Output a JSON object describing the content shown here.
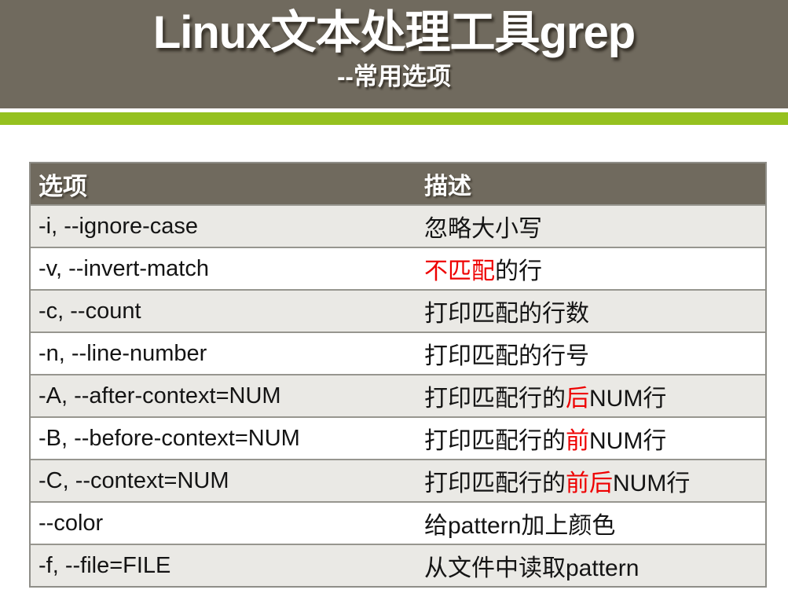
{
  "header": {
    "title": "Linux文本处理工具grep",
    "subtitle": "--常用选项"
  },
  "colors": {
    "band_brown": "#706a5e",
    "accent_green": "#95c11f",
    "row_alt_gray": "#eae9e5",
    "highlight_red": "#ee0000",
    "table_border": "#8f8e88",
    "row_divider": "#97968f"
  },
  "table": {
    "columns": [
      "选项",
      "描述"
    ],
    "rows": [
      {
        "option": "-i, --ignore-case",
        "desc": [
          {
            "text": "忽略大小写",
            "red": false
          }
        ]
      },
      {
        "option": "-v, --invert-match",
        "desc": [
          {
            "text": "不匹配",
            "red": true
          },
          {
            "text": "的行",
            "red": false
          }
        ]
      },
      {
        "option": "-c, --count",
        "desc": [
          {
            "text": "打印匹配的行数",
            "red": false
          }
        ]
      },
      {
        "option": "-n, --line-number",
        "desc": [
          {
            "text": "打印匹配的行号",
            "red": false
          }
        ]
      },
      {
        "option": "-A, --after-context=NUM",
        "desc": [
          {
            "text": "打印匹配行的",
            "red": false
          },
          {
            "text": "后",
            "red": true
          },
          {
            "text": "NUM行",
            "red": false
          }
        ]
      },
      {
        "option": "-B, --before-context=NUM",
        "desc": [
          {
            "text": "打印匹配行的",
            "red": false
          },
          {
            "text": "前",
            "red": true
          },
          {
            "text": "NUM行",
            "red": false
          }
        ]
      },
      {
        "option": "-C, --context=NUM",
        "desc": [
          {
            "text": "打印匹配行的",
            "red": false
          },
          {
            "text": "前后",
            "red": true
          },
          {
            "text": "NUM行",
            "red": false
          }
        ]
      },
      {
        "option": "--color",
        "desc": [
          {
            "text": "给pattern加上颜色",
            "red": false
          }
        ]
      },
      {
        "option": "-f, --file=FILE",
        "desc": [
          {
            "text": "从文件中读取pattern",
            "red": false
          }
        ]
      }
    ]
  }
}
